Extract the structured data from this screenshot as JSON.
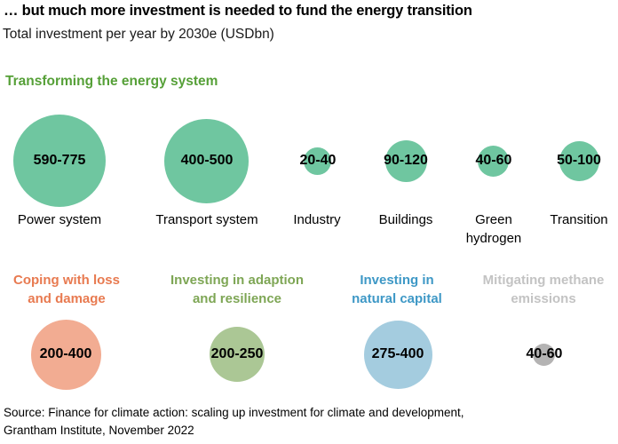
{
  "header": {
    "title": "… but much more investment is needed to fund the energy transition",
    "subtitle": "Total investment per year by 2030e (USDbn)"
  },
  "colors": {
    "energy-title": "#56A038",
    "energy-bubble": "#6FC6A0",
    "loss-title": "#E87A50",
    "loss-bubble": "#F2AC92",
    "adaption-title": "#7EA655",
    "adaption-bubble": "#ABC795",
    "natural-title": "#3E98C6",
    "natural-bubble": "#A4CCDF",
    "methane-title": "#C3C3C3",
    "methane-bubble": "#B4B3B3",
    "text": "#000000"
  },
  "chart_data": {
    "type": "bubble",
    "title": "Total investment per year by 2030e (USDbn)",
    "unit": "USDbn",
    "groups": [
      {
        "title": "Transforming the energy system",
        "items": [
          {
            "label": "Power system",
            "label_display": "Power system",
            "range": "590-775",
            "min": 590,
            "max": 775
          },
          {
            "label": "Transport system",
            "label_display": "Transport system",
            "range": "400-500",
            "min": 400,
            "max": 500
          },
          {
            "label": "Industry",
            "label_display": "Industry",
            "range": "20-40",
            "min": 20,
            "max": 40
          },
          {
            "label": "Buildings",
            "label_display": "Buildings",
            "range": "90-120",
            "min": 90,
            "max": 120
          },
          {
            "label": "Green hydrogen",
            "label_display": "Green\nhydrogen",
            "range": "40-60",
            "min": 40,
            "max": 60
          },
          {
            "label": "Transition",
            "label_display": "Transition",
            "range": "50-100",
            "min": 50,
            "max": 100
          }
        ]
      },
      {
        "items": [
          {
            "label": "Coping with loss and damage",
            "label_display": "Coping with loss\nand damage",
            "range": "200-400",
            "min": 200,
            "max": 400
          },
          {
            "label": "Investing in adaption and resilience",
            "label_display": "Investing in adaption\nand resilience",
            "range": "200-250",
            "min": 200,
            "max": 250
          },
          {
            "label": "Investing in natural capital",
            "label_display": "Investing in\nnatural capital",
            "range": "275-400",
            "min": 275,
            "max": 400
          },
          {
            "label": "Mitigating methane emissions",
            "label_display": "Mitigating methane\nemissions",
            "range": "40-60",
            "min": 40,
            "max": 60
          }
        ]
      }
    ]
  },
  "footer": {
    "source": "Source: Finance for climate action: scaling up investment for climate and development,\nGrantham Institute, November 2022"
  }
}
